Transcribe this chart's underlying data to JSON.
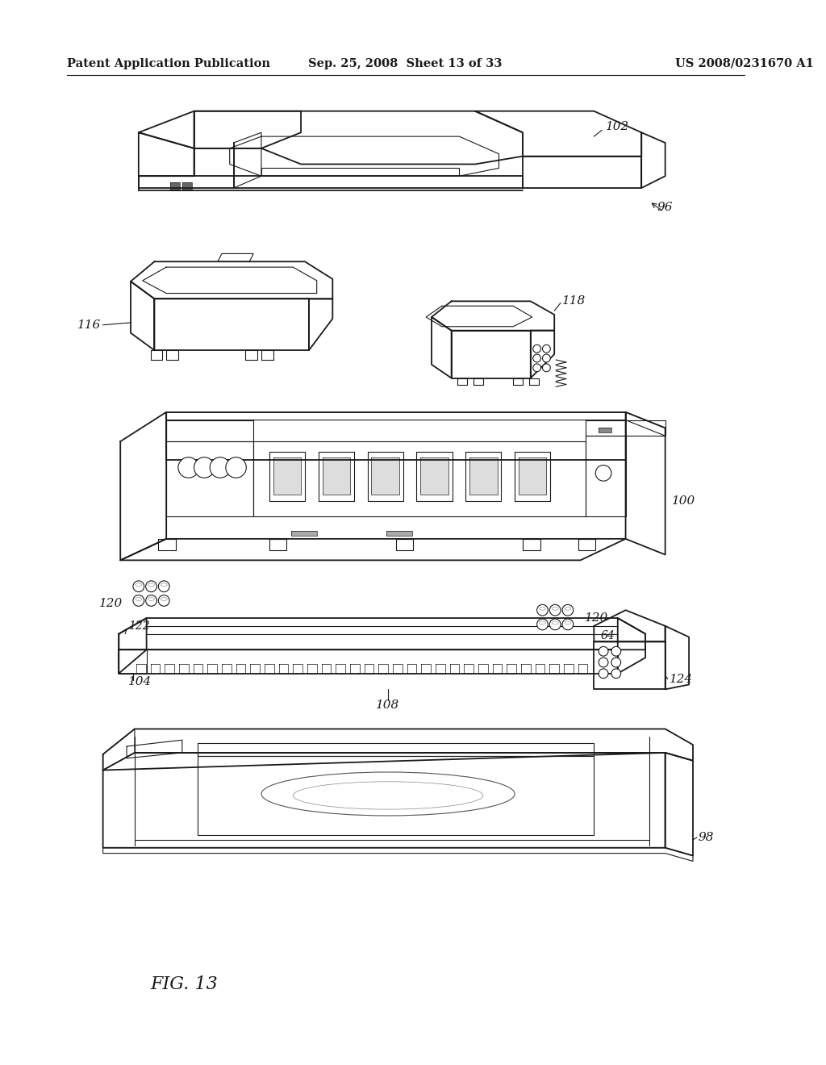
{
  "background_color": "#ffffff",
  "header_left": "Patent Application Publication",
  "header_center": "Sep. 25, 2008  Sheet 13 of 33",
  "header_right": "US 2008/0231670 A1",
  "figure_label": "FIG. 13",
  "header_font_size": 10.5,
  "line_color": "#1a1a1a",
  "label_fontsize": 11,
  "fig_width": 10.24,
  "fig_height": 13.2,
  "dpi": 100
}
